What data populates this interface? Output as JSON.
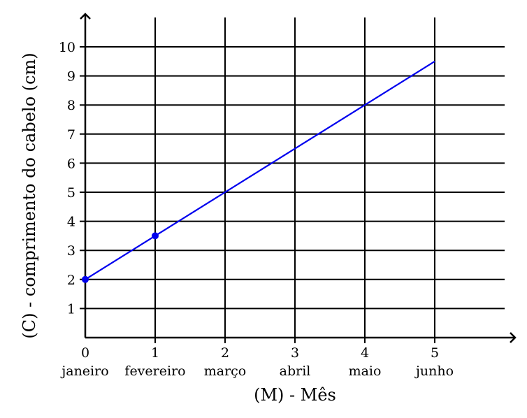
{
  "chart_data": {
    "type": "line",
    "xlabel": "(M) - Mês",
    "ylabel": "(C) - comprimento do cabelo (cm)",
    "x_ticks": [
      0,
      1,
      2,
      3,
      4,
      5
    ],
    "x_tick_labels": [
      "0",
      "1",
      "2",
      "3",
      "4",
      "5"
    ],
    "x_categories": [
      "janeiro",
      "fevereiro",
      "março",
      "abril",
      "maio",
      "junho"
    ],
    "y_ticks": [
      1,
      2,
      3,
      4,
      5,
      6,
      7,
      8,
      9,
      10
    ],
    "y_tick_labels": [
      "1",
      "2",
      "3",
      "4",
      "5",
      "6",
      "7",
      "8",
      "9",
      "10"
    ],
    "xlim": [
      0,
      6.2
    ],
    "ylim": [
      0,
      11.2
    ],
    "grid": true,
    "series": [
      {
        "x": [
          0,
          5
        ],
        "y": [
          2,
          9.5
        ],
        "color": "#0000ee"
      }
    ],
    "highlighted_points": [
      {
        "x": 0,
        "y": 2
      },
      {
        "x": 1,
        "y": 3.5
      }
    ],
    "colors": {
      "line": "#0000ee",
      "grid": "#000000",
      "axis": "#000000"
    }
  }
}
